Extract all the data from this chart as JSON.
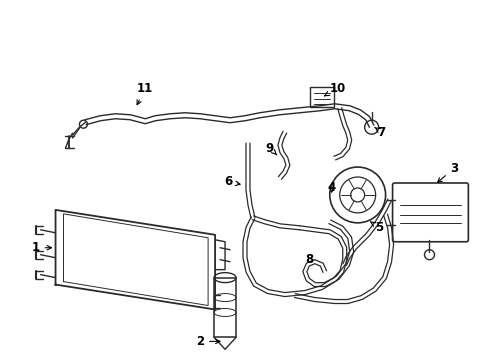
{
  "bg_color": "#ffffff",
  "line_color": "#2a2a2a",
  "label_color": "#000000",
  "label_fontsize": 8.5,
  "figsize": [
    4.89,
    3.6
  ],
  "dpi": 100
}
